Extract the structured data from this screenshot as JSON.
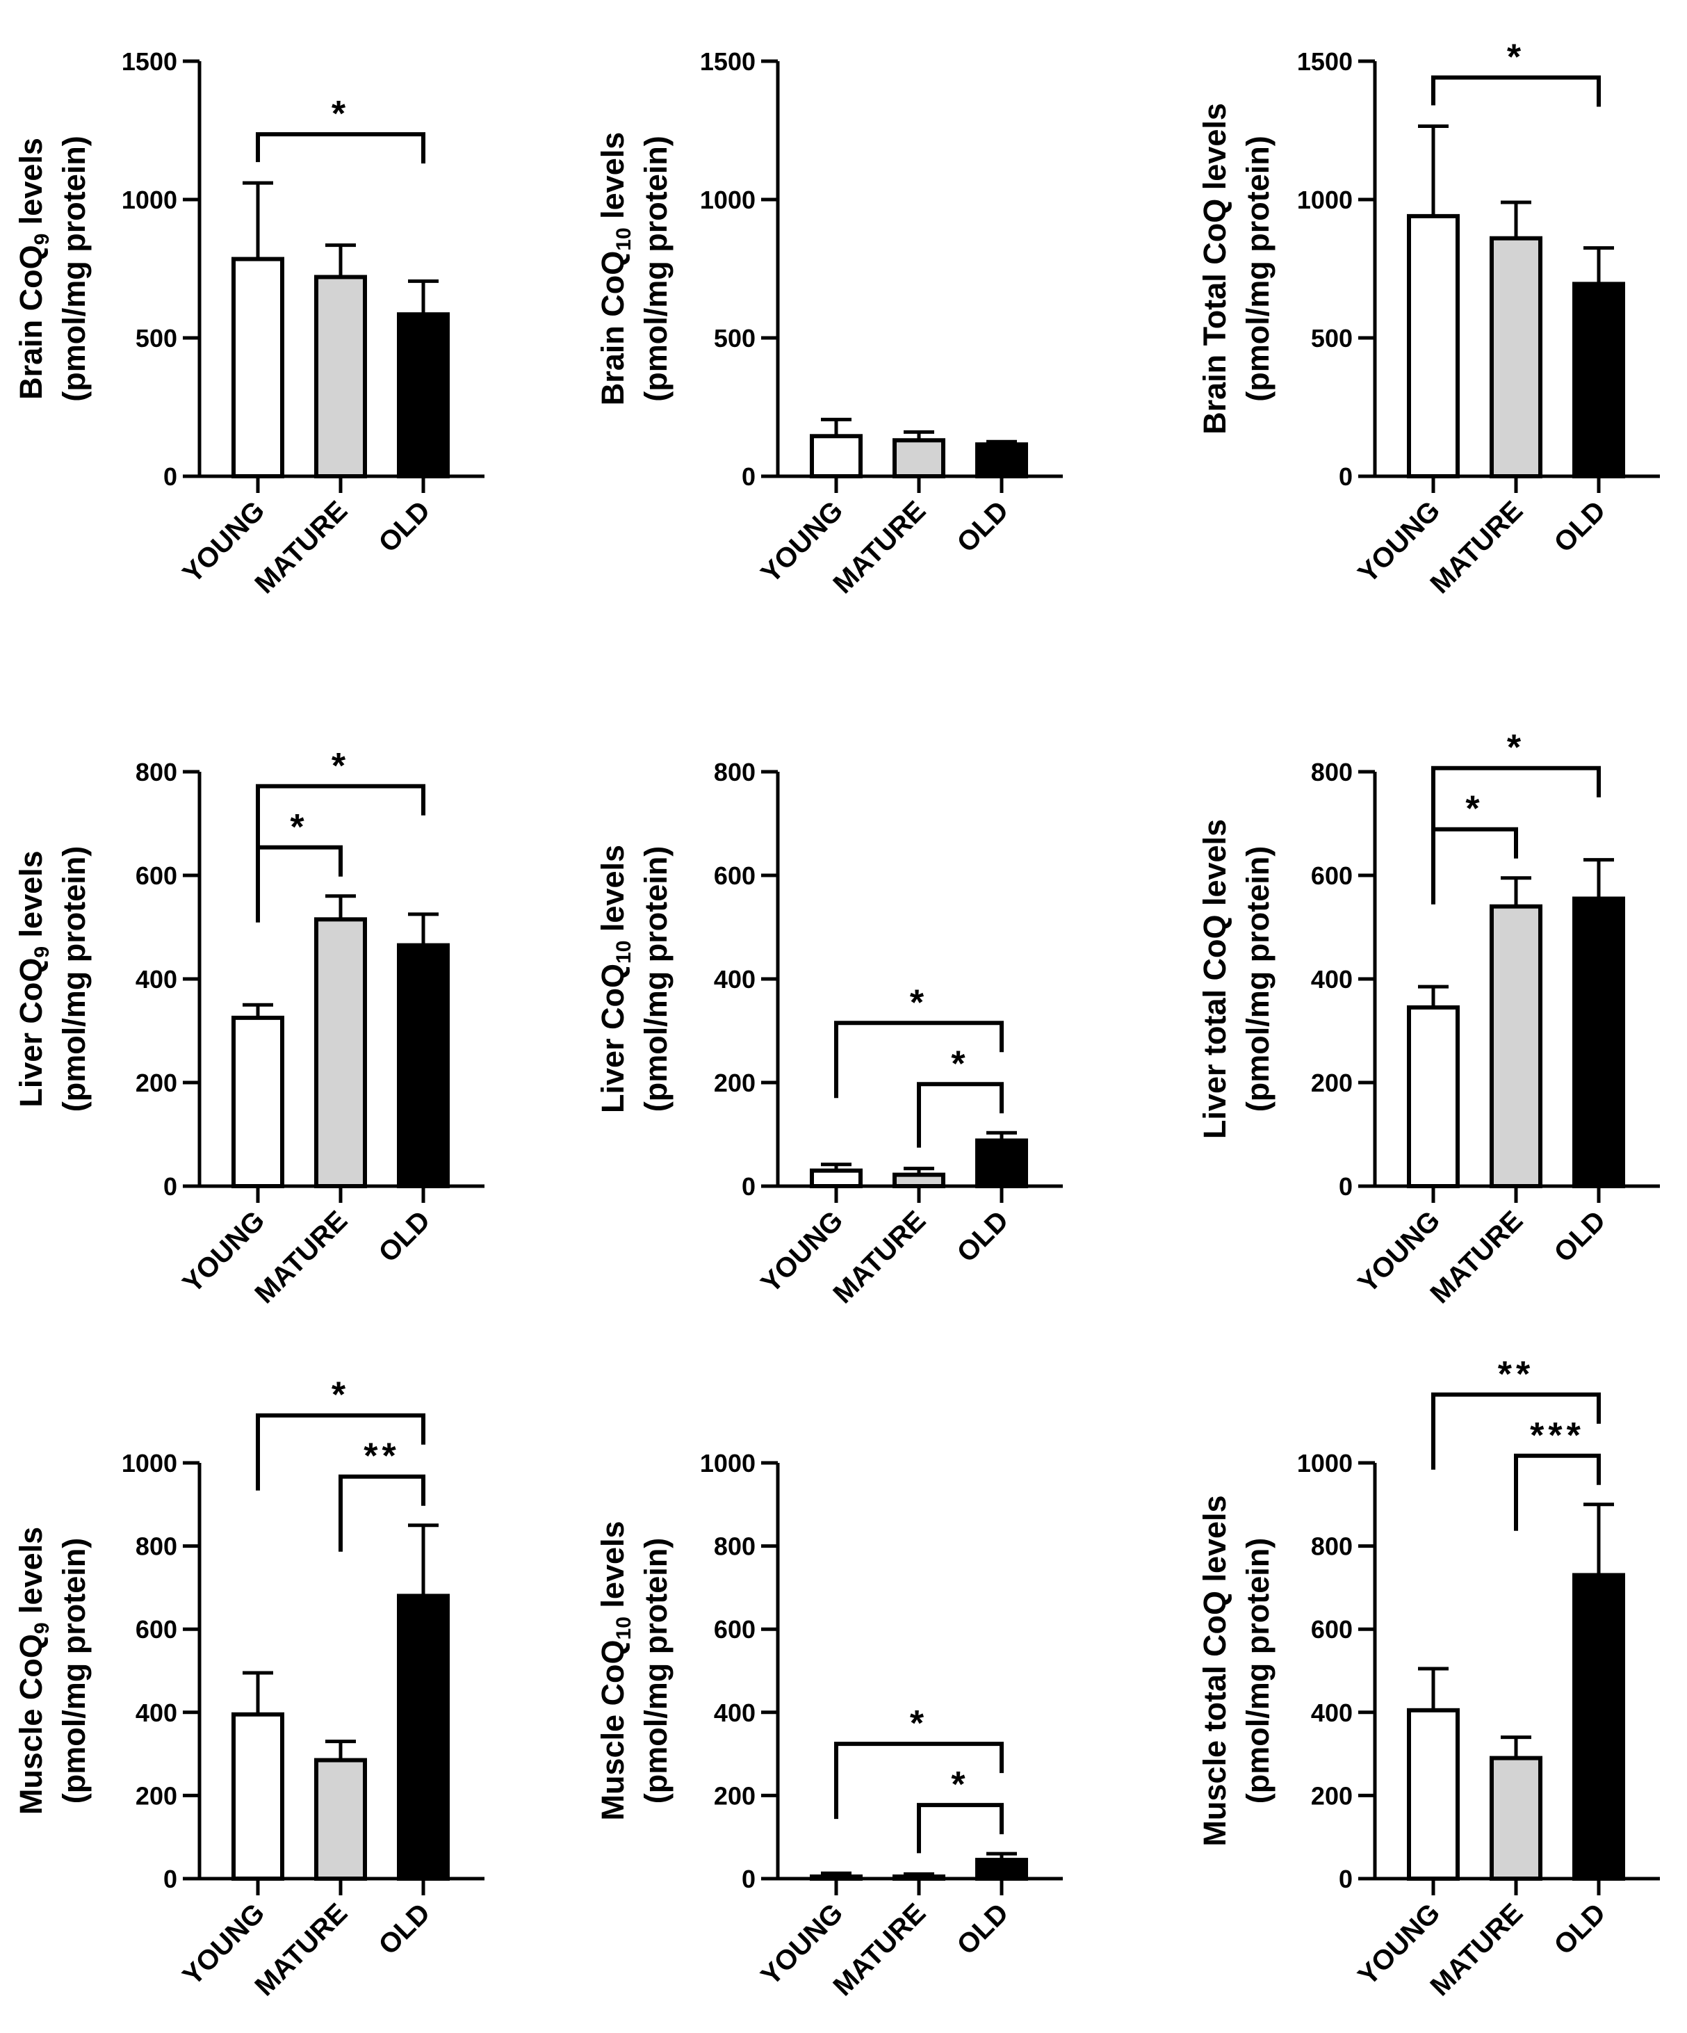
{
  "categories": [
    "YOUNG",
    "MATURE",
    "OLD"
  ],
  "colors": {
    "YOUNG": "#ffffff",
    "MATURE": "#d3d3d3",
    "OLD": "#000000",
    "stroke": "#000000"
  },
  "chart_data": [
    {
      "id": "brain-coq9",
      "type": "bar",
      "tissue": "Brain",
      "ylabel": [
        "Brain CoQ",
        "9",
        " levels"
      ],
      "ylabel2": "(pmol/mg protein)",
      "ylim": [
        0,
        1500
      ],
      "yticks": [
        "0",
        "500",
        "1000",
        "1500"
      ],
      "values": [
        785,
        720,
        585
      ],
      "errors": [
        275,
        115,
        120
      ],
      "significance": [
        {
          "from": 0,
          "to": 2,
          "label": "*"
        }
      ]
    },
    {
      "id": "brain-coq10",
      "type": "bar",
      "tissue": "Brain",
      "ylabel": [
        "Brain CoQ",
        "10",
        " levels"
      ],
      "ylabel2": "(pmol/mg protein)",
      "ylim": [
        0,
        1500
      ],
      "yticks": [
        "0",
        "500",
        "1000",
        "1500"
      ],
      "values": [
        145,
        130,
        115
      ],
      "errors": [
        60,
        30,
        10
      ],
      "significance": []
    },
    {
      "id": "brain-total",
      "type": "bar",
      "tissue": "Brain",
      "ylabel": [
        "Brain Total CoQ levels"
      ],
      "ylabel2": "(pmol/mg protein)",
      "ylim": [
        0,
        1500
      ],
      "yticks": [
        "0",
        "500",
        "1000",
        "1500"
      ],
      "values": [
        940,
        860,
        695
      ],
      "errors": [
        325,
        130,
        130
      ],
      "significance": [
        {
          "from": 0,
          "to": 2,
          "label": "*"
        }
      ]
    },
    {
      "id": "liver-coq9",
      "type": "bar",
      "tissue": "Liver",
      "ylabel": [
        "Liver CoQ",
        "9",
        " levels"
      ],
      "ylabel2": "(pmol/mg protein)",
      "ylim": [
        0,
        800
      ],
      "yticks": [
        "0",
        "200",
        "400",
        "600",
        "800"
      ],
      "values": [
        325,
        515,
        465
      ],
      "errors": [
        25,
        45,
        60
      ],
      "significance": [
        {
          "from": 0,
          "to": 1,
          "label": "*"
        },
        {
          "from": 0,
          "to": 2,
          "label": "*"
        }
      ]
    },
    {
      "id": "liver-coq10",
      "type": "bar",
      "tissue": "Liver",
      "ylabel": [
        "Liver CoQ",
        "10",
        " levels"
      ],
      "ylabel2": "(pmol/mg protein)",
      "ylim": [
        0,
        800
      ],
      "yticks": [
        "0",
        "200",
        "400",
        "600",
        "800"
      ],
      "values": [
        30,
        22,
        88
      ],
      "errors": [
        12,
        12,
        15
      ],
      "significance": [
        {
          "from": 1,
          "to": 2,
          "label": "*"
        },
        {
          "from": 0,
          "to": 2,
          "label": "*"
        }
      ]
    },
    {
      "id": "liver-total",
      "type": "bar",
      "tissue": "Liver",
      "ylabel": [
        "Liver total CoQ levels"
      ],
      "ylabel2": "(pmol/mg protein)",
      "ylim": [
        0,
        800
      ],
      "yticks": [
        "0",
        "200",
        "400",
        "600",
        "800"
      ],
      "values": [
        345,
        540,
        555
      ],
      "errors": [
        40,
        55,
        75
      ],
      "significance": [
        {
          "from": 0,
          "to": 1,
          "label": "*"
        },
        {
          "from": 0,
          "to": 2,
          "label": "*"
        }
      ]
    },
    {
      "id": "muscle-coq9",
      "type": "bar",
      "tissue": "Muscle",
      "ylabel": [
        "Muscle CoQ",
        "9",
        " levels"
      ],
      "ylabel2": "(pmol/mg protein)",
      "ylim": [
        0,
        1000
      ],
      "yticks": [
        "0",
        "200",
        "400",
        "600",
        "800",
        "1000"
      ],
      "values": [
        395,
        285,
        680
      ],
      "errors": [
        100,
        45,
        170
      ],
      "significance": [
        {
          "from": 1,
          "to": 2,
          "label": "**"
        },
        {
          "from": 0,
          "to": 2,
          "label": "*"
        }
      ]
    },
    {
      "id": "muscle-coq10",
      "type": "bar",
      "tissue": "Muscle",
      "ylabel": [
        "Muscle CoQ",
        "10",
        " levels"
      ],
      "ylabel2": "(pmol/mg protein)",
      "ylim": [
        0,
        1000
      ],
      "yticks": [
        "0",
        "200",
        "400",
        "600",
        "800",
        "1000"
      ],
      "values": [
        5,
        5,
        45
      ],
      "errors": [
        8,
        6,
        15
      ],
      "significance": [
        {
          "from": 1,
          "to": 2,
          "label": "*"
        },
        {
          "from": 0,
          "to": 2,
          "label": "*"
        }
      ]
    },
    {
      "id": "muscle-total",
      "type": "bar",
      "tissue": "Muscle",
      "ylabel": [
        "Muscle total CoQ levels"
      ],
      "ylabel2": "(pmol/mg protein)",
      "ylim": [
        0,
        1000
      ],
      "yticks": [
        "0",
        "200",
        "400",
        "600",
        "800",
        "1000"
      ],
      "values": [
        405,
        290,
        730
      ],
      "errors": [
        100,
        50,
        170
      ],
      "significance": [
        {
          "from": 1,
          "to": 2,
          "label": "***"
        },
        {
          "from": 0,
          "to": 2,
          "label": "**"
        }
      ]
    }
  ]
}
